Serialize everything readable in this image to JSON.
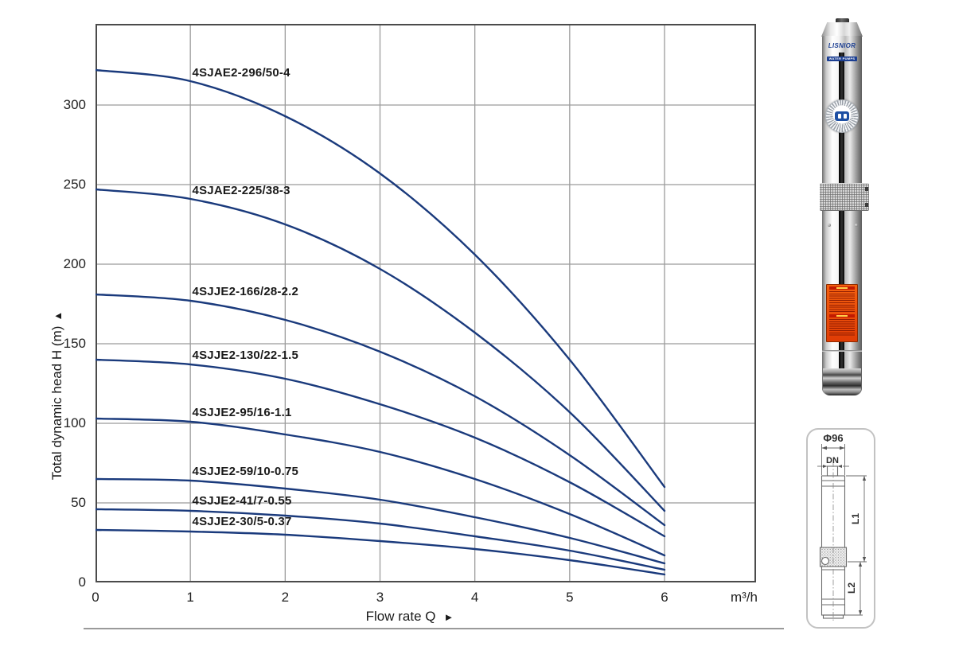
{
  "chart_data": {
    "type": "line",
    "title": "",
    "xlabel": "Flow rate Q",
    "xlabel_arrow": "►",
    "ylabel": "Total dynamic head H (m)",
    "ylabel_arrow": "▲",
    "x_unit": "m³/h",
    "x_ticks": [
      0,
      1,
      2,
      3,
      4,
      5,
      6
    ],
    "y_ticks": [
      0,
      50,
      100,
      150,
      200,
      250,
      300
    ],
    "xlim": [
      0,
      6.965
    ],
    "ylim": [
      0,
      351
    ],
    "grid": true,
    "legend_position": "inline-labels-above-curves",
    "curve_color": "#1a3a7c",
    "grid_color": "#9b9b9b",
    "frame_color": "#4b4b4b",
    "x": [
      0,
      1,
      2,
      3,
      4,
      5,
      6
    ],
    "series": [
      {
        "name": "4SJAE2-296/50-4",
        "values": [
          322,
          315,
          293,
          257,
          206,
          140,
          60
        ]
      },
      {
        "name": "4SJAE2-225/38-3",
        "values": [
          247,
          241,
          225,
          197,
          157,
          107,
          45
        ]
      },
      {
        "name": "4SJJE2-166/28-2.2",
        "values": [
          181,
          177,
          165,
          145,
          117,
          80,
          36
        ]
      },
      {
        "name": "4SJJE2-130/22-1.5",
        "values": [
          140,
          137,
          128,
          112,
          91,
          63,
          29
        ]
      },
      {
        "name": "4SJJE2-95/16-1.1",
        "values": [
          103,
          101,
          93,
          82,
          65,
          43,
          17
        ]
      },
      {
        "name": "4SJJE2-59/10-0.75",
        "values": [
          65,
          64,
          59,
          52,
          41,
          28,
          12
        ]
      },
      {
        "name": "4SJJE2-41/7-0.55",
        "values": [
          46,
          45,
          42,
          37,
          29,
          20,
          8
        ]
      },
      {
        "name": "4SJJE2-30/5-0.37",
        "values": [
          33,
          32,
          30,
          26,
          21,
          14,
          5
        ]
      }
    ]
  },
  "pump_photo": {
    "brand": "LISNIOR",
    "brand_sub": "WATER PUMPS"
  },
  "dimension_diagram": {
    "diameter_label": "Φ96",
    "port_label": "DN",
    "l1_label": "L1",
    "l2_label": "L2"
  }
}
